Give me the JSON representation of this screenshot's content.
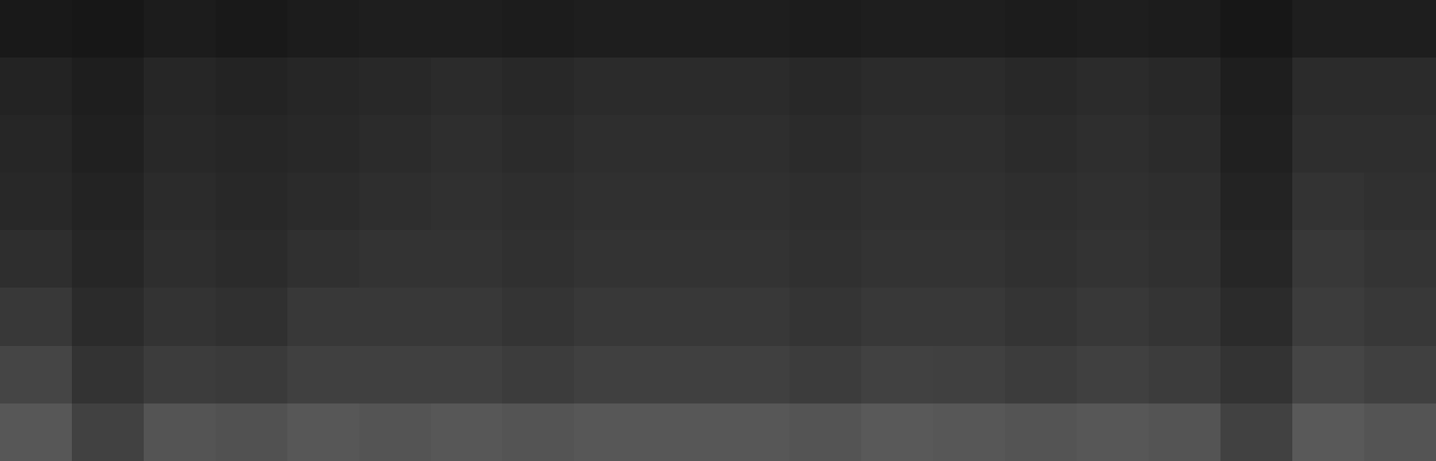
{
  "chart_data": {
    "type": "heatmap",
    "color": "gray",
    "tick_labels": false,
    "grid": false,
    "value_range": [
      0,
      1
    ],
    "cells": [
      [
        0.1,
        0.09,
        0.11,
        0.1,
        0.11,
        0.12,
        0.12,
        0.11,
        0.12,
        0.12,
        0.12,
        0.11,
        0.12,
        0.12,
        0.11,
        0.12,
        0.11,
        0.09,
        0.12,
        0.12
      ],
      [
        0.14,
        0.12,
        0.15,
        0.14,
        0.15,
        0.16,
        0.17,
        0.16,
        0.17,
        0.17,
        0.17,
        0.16,
        0.17,
        0.17,
        0.16,
        0.17,
        0.16,
        0.12,
        0.17,
        0.17
      ],
      [
        0.15,
        0.13,
        0.16,
        0.15,
        0.16,
        0.17,
        0.18,
        0.17,
        0.18,
        0.18,
        0.18,
        0.17,
        0.18,
        0.18,
        0.17,
        0.18,
        0.17,
        0.13,
        0.18,
        0.18
      ],
      [
        0.16,
        0.14,
        0.17,
        0.16,
        0.17,
        0.18,
        0.19,
        0.18,
        0.19,
        0.19,
        0.19,
        0.18,
        0.19,
        0.19,
        0.18,
        0.19,
        0.18,
        0.14,
        0.2,
        0.19
      ],
      [
        0.18,
        0.15,
        0.18,
        0.17,
        0.19,
        0.2,
        0.2,
        0.19,
        0.2,
        0.2,
        0.2,
        0.19,
        0.2,
        0.2,
        0.19,
        0.2,
        0.19,
        0.15,
        0.22,
        0.21
      ],
      [
        0.22,
        0.17,
        0.2,
        0.19,
        0.22,
        0.22,
        0.22,
        0.21,
        0.22,
        0.22,
        0.22,
        0.21,
        0.22,
        0.22,
        0.21,
        0.22,
        0.21,
        0.17,
        0.24,
        0.22
      ],
      [
        0.27,
        0.2,
        0.24,
        0.23,
        0.25,
        0.25,
        0.25,
        0.24,
        0.25,
        0.25,
        0.25,
        0.24,
        0.26,
        0.25,
        0.24,
        0.25,
        0.24,
        0.2,
        0.27,
        0.25
      ],
      [
        0.34,
        0.26,
        0.33,
        0.32,
        0.34,
        0.33,
        0.34,
        0.33,
        0.34,
        0.34,
        0.34,
        0.33,
        0.35,
        0.34,
        0.33,
        0.34,
        0.33,
        0.26,
        0.35,
        0.33
      ]
    ]
  }
}
